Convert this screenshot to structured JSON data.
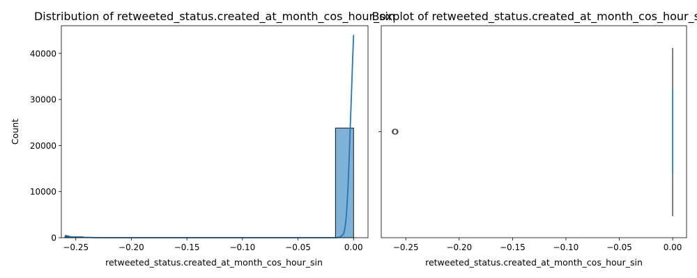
{
  "chart_data": [
    {
      "type": "bar",
      "subtype": "histogram-with-kde",
      "title": "Distribution of retweeted_status.created_at_month_cos_hour_sin",
      "xlabel": "retweeted_status.created_at_month_cos_hour_sin",
      "ylabel": "Count",
      "xlim": [
        -0.263,
        0.013
      ],
      "ylim": [
        0,
        46000
      ],
      "xticks": [
        -0.25,
        -0.2,
        -0.15,
        -0.1,
        -0.05,
        0.0
      ],
      "xtick_labels": [
        "−0.25",
        "−0.20",
        "−0.15",
        "−0.10",
        "−0.05",
        "0.00"
      ],
      "yticks": [
        0,
        10000,
        20000,
        30000,
        40000
      ],
      "ytick_labels": [
        "0",
        "10000",
        "20000",
        "30000",
        "40000"
      ],
      "bins": [
        {
          "x0": -0.2598,
          "x1": -0.2435,
          "count": 200
        },
        {
          "x0": -0.0163,
          "x1": 0.0,
          "count": 23800
        }
      ],
      "bar_color": "#7fb2d6",
      "line_color": "#1f77b4",
      "kde": {
        "x": [
          -0.2598,
          -0.258,
          -0.255,
          -0.252,
          -0.249,
          -0.246,
          -0.243,
          -0.23,
          -0.1,
          -0.015,
          -0.012,
          -0.009,
          -0.008,
          -0.007,
          -0.006,
          -0.005,
          -0.004,
          -0.003,
          -0.002,
          -0.001,
          0.0
        ],
        "y": [
          500,
          420,
          220,
          120,
          110,
          100,
          80,
          0,
          0,
          0,
          150,
          800,
          1800,
          3500,
          6500,
          11000,
          17000,
          24000,
          30500,
          37500,
          44000
        ]
      },
      "grid": false
    },
    {
      "type": "box",
      "title": "Boxplot of retweeted_status.created_at_month_cos_hour_sin",
      "xlabel": "retweeted_status.created_at_month_cos_hour_sin",
      "xlim": [
        -0.273,
        0.013
      ],
      "xticks": [
        -0.25,
        -0.2,
        -0.15,
        -0.1,
        -0.05,
        0.0
      ],
      "xtick_labels": [
        "−0.25",
        "−0.20",
        "−0.15",
        "−0.10",
        "−0.05",
        "0.00"
      ],
      "box": {
        "min": 0.0,
        "q1": 0.0,
        "median": 0.0,
        "q3": 0.0,
        "max": 0.0
      },
      "outliers": [
        -0.26
      ],
      "box_color": "#1f77b4",
      "grid": false
    }
  ]
}
